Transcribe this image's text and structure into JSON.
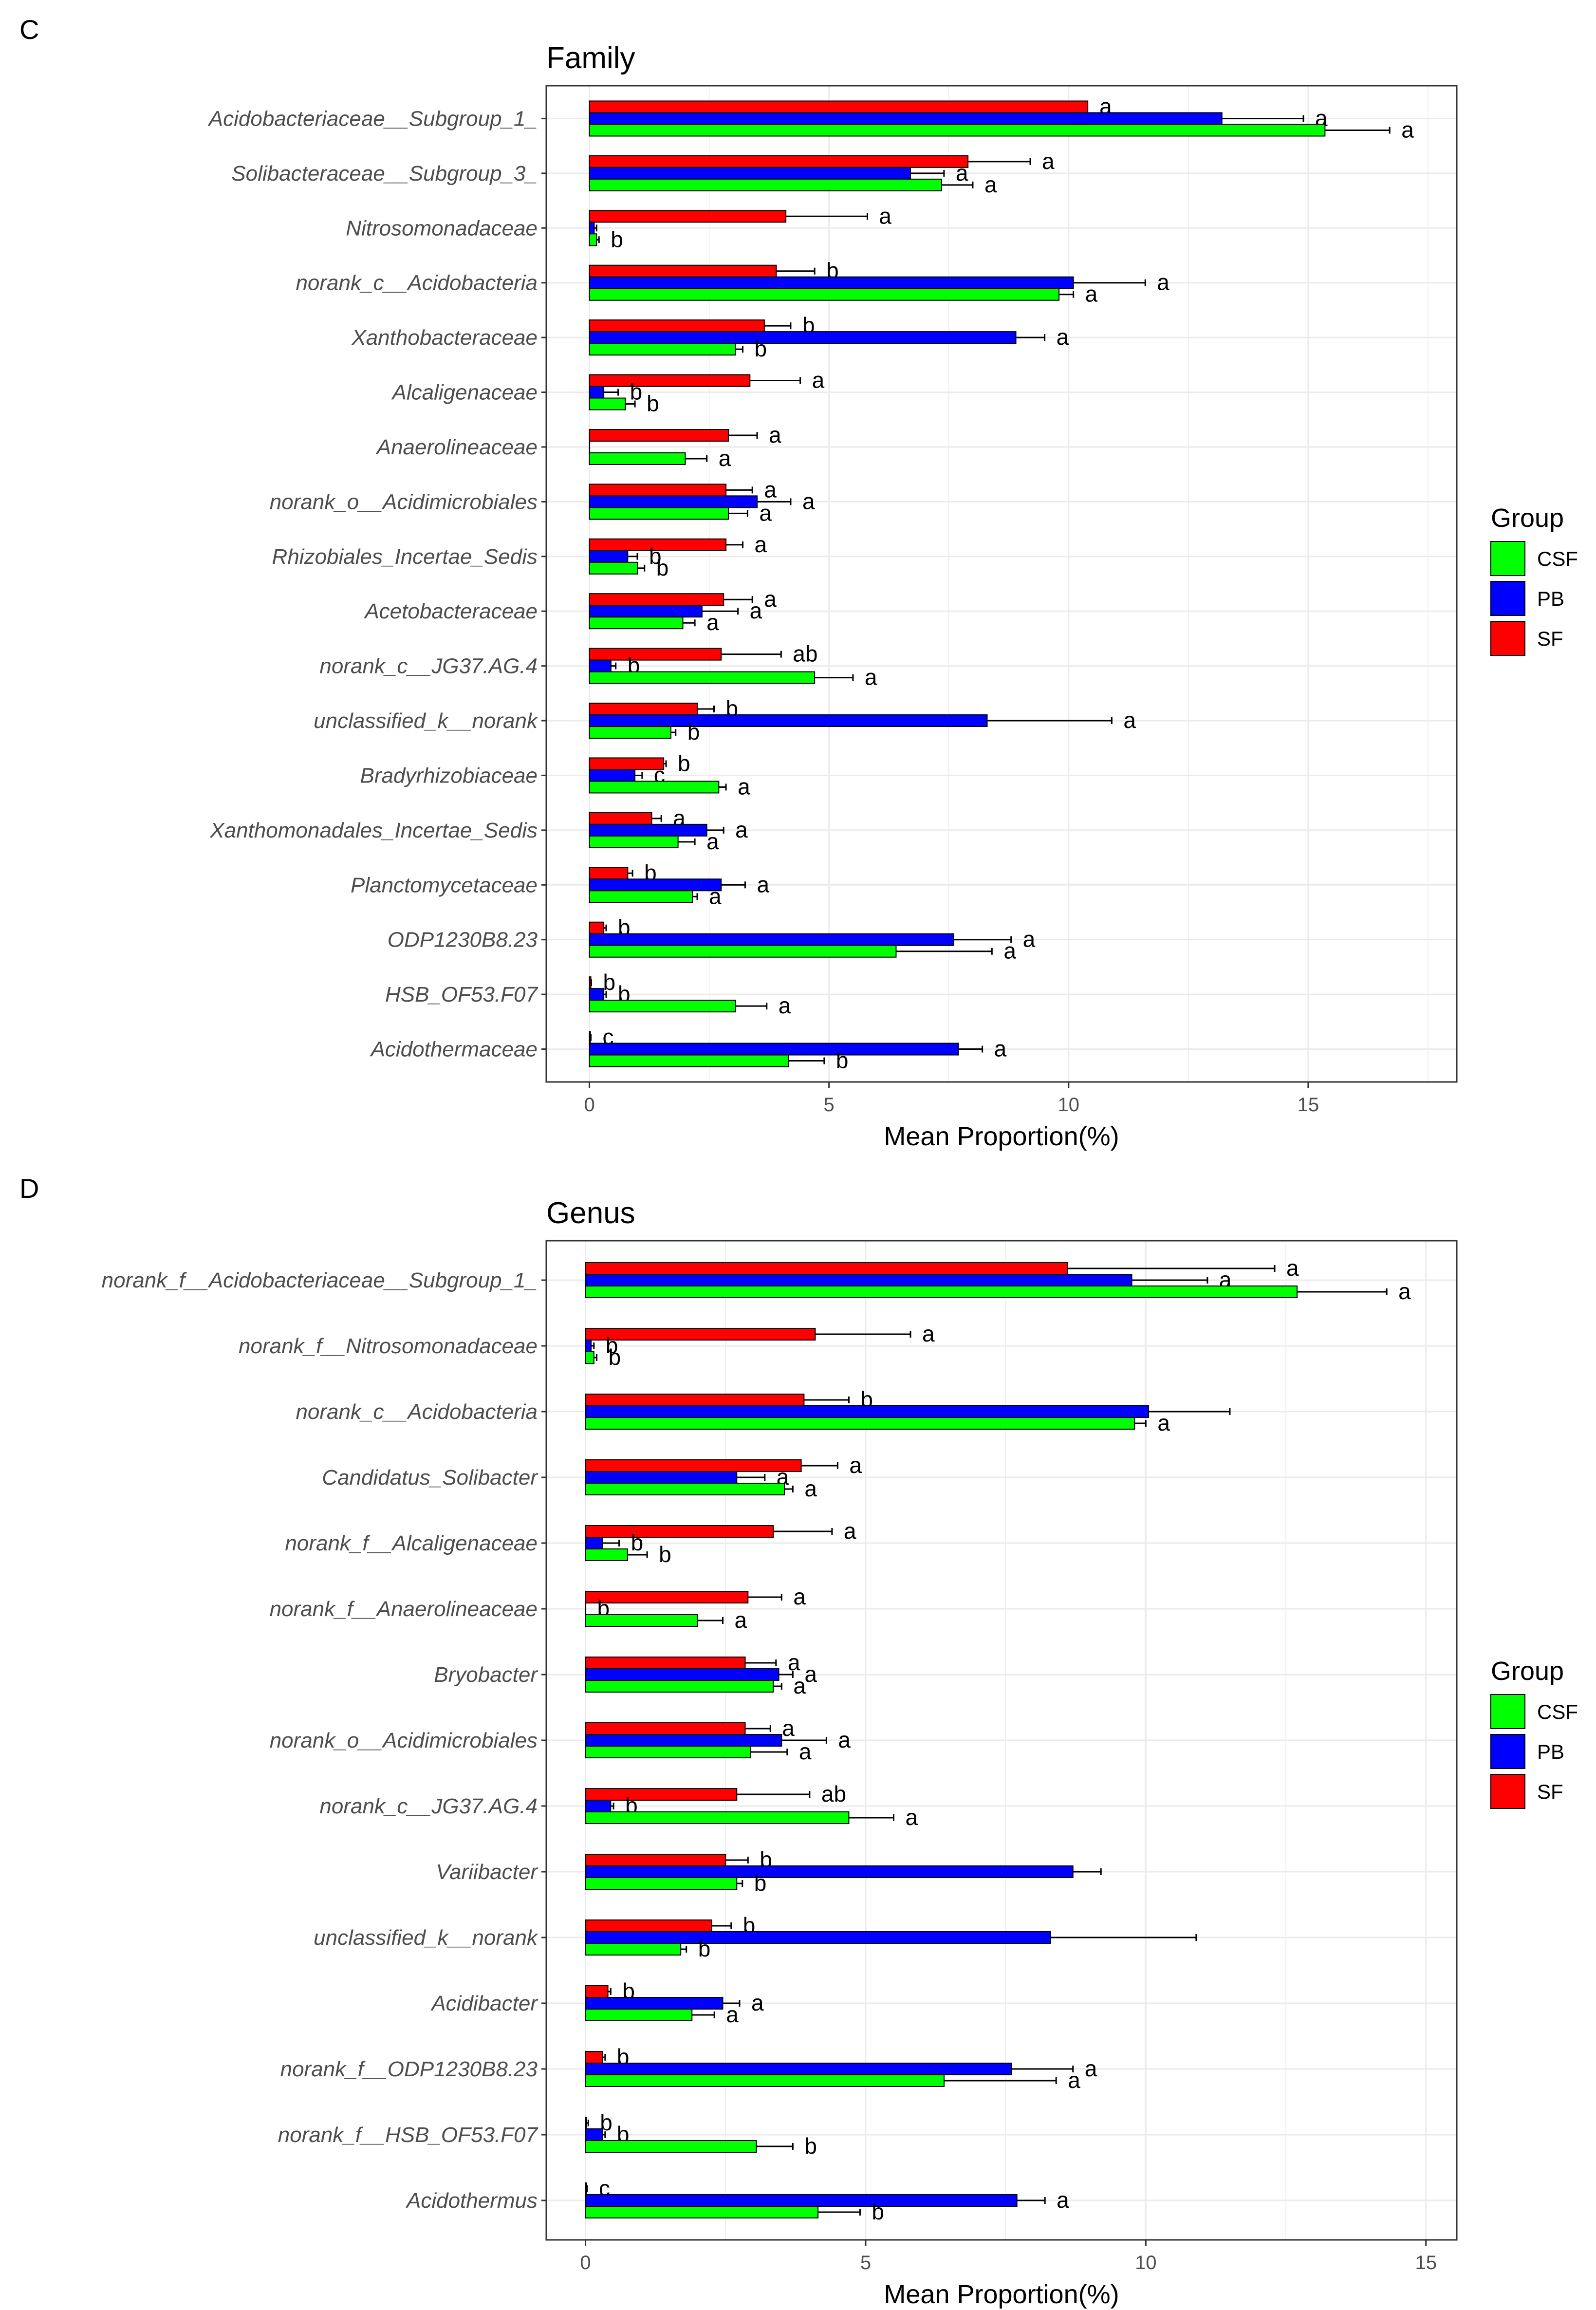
{
  "colors": {
    "CSF": "#00FF00",
    "PB": "#0000FF",
    "SF": "#FF0000"
  },
  "legend": {
    "title": "Group",
    "entries": [
      "CSF",
      "PB",
      "SF"
    ]
  },
  "chart_data": [
    {
      "type": "bar",
      "orientation": "horizontal",
      "panel_letter": "C",
      "title": "Family",
      "xlabel": "Mean Proportion(%)",
      "xlim": [
        -0.9,
        18.1
      ],
      "xticks": [
        0,
        5,
        10,
        15
      ],
      "grid": true,
      "legend_position": "right",
      "categories": [
        "Acidobacteriaceae__Subgroup_1_",
        "Solibacteraceae__Subgroup_3_",
        "Nitrosomonadaceae",
        "norank_c__Acidobacteria",
        "Xanthobacteraceae",
        "Alcaligenaceae",
        "Anaerolineaceae",
        "norank_o__Acidimicrobiales",
        "Rhizobiales_Incertae_Sedis",
        "Acetobacteraceae",
        "norank_c__JG37.AG.4",
        "unclassified_k__norank",
        "Bradyrhizobiaceae",
        "Xanthomonadales_Incertae_Sedis",
        "Planctomycetaceae",
        "ODP1230B8.23",
        "HSB_OF53.F07",
        "Acidothermaceae"
      ],
      "series": [
        {
          "name": "SF",
          "values": [
            10.4,
            7.9,
            4.1,
            3.9,
            3.65,
            3.35,
            2.9,
            2.85,
            2.85,
            2.8,
            2.75,
            2.25,
            1.55,
            1.3,
            0.8,
            0.3,
            0.03,
            0.02
          ],
          "errors": [
            4.2,
            9.2,
            5.8,
            4.7,
            4.2,
            4.4,
            3.5,
            3.4,
            3.2,
            3.4,
            4.0,
            2.6,
            1.6,
            1.5,
            0.9,
            0.35,
            0.04,
            0.03
          ],
          "labels": [
            "a",
            "a",
            "a",
            "b",
            "b",
            "a",
            "a",
            "a",
            "a",
            "a",
            "ab",
            "b",
            "b",
            "a",
            "b",
            "b",
            "b",
            "c"
          ]
        },
        {
          "name": "PB",
          "values": [
            13.2,
            6.7,
            0.1,
            10.1,
            8.9,
            0.3,
            0.0,
            3.5,
            0.8,
            2.35,
            0.45,
            8.3,
            0.95,
            2.45,
            2.75,
            7.6,
            0.3,
            7.7
          ],
          "errors": [
            14.9,
            7.4,
            0.15,
            11.6,
            9.5,
            0.6,
            0.0,
            4.2,
            1.0,
            3.1,
            0.55,
            10.9,
            1.1,
            2.8,
            3.25,
            8.8,
            0.35,
            8.2
          ],
          "labels": [
            "a",
            "a",
            "",
            "a",
            "a",
            "b",
            "",
            "a",
            "b",
            "a",
            "b",
            "a",
            "c",
            "a",
            "a",
            "a",
            "b",
            "a"
          ]
        },
        {
          "name": "CSF",
          "values": [
            15.35,
            7.35,
            0.15,
            9.8,
            3.05,
            0.75,
            2.0,
            2.9,
            1.0,
            1.95,
            4.7,
            1.7,
            2.7,
            1.85,
            2.15,
            6.4,
            3.05,
            4.15
          ],
          "errors": [
            16.7,
            8.0,
            0.2,
            10.1,
            3.2,
            0.95,
            2.45,
            3.3,
            1.15,
            2.2,
            5.5,
            1.8,
            2.85,
            2.2,
            2.25,
            8.4,
            3.7,
            4.9
          ],
          "labels": [
            "a",
            "a",
            "b",
            "a",
            "b",
            "b",
            "a",
            "a",
            "b",
            "a",
            "a",
            "b",
            "a",
            "a",
            "a",
            "a",
            "a",
            "b"
          ]
        }
      ]
    },
    {
      "type": "bar",
      "orientation": "horizontal",
      "panel_letter": "D",
      "title": "Genus",
      "xlabel": "Mean Proportion(%)",
      "xlim": [
        -0.7,
        15.55
      ],
      "xticks": [
        0,
        5,
        10,
        15
      ],
      "grid": true,
      "legend_position": "right",
      "categories": [
        "norank_f__Acidobacteriaceae__Subgroup_1_",
        "norank_f__Nitrosomonadaceae",
        "norank_c__Acidobacteria",
        "Candidatus_Solibacter",
        "norank_f__Alcaligenaceae",
        "norank_f__Anaerolineaceae",
        "Bryobacter",
        "norank_o__Acidimicrobiales",
        "norank_c__JG37.AG.4",
        "Variibacter",
        "unclassified_k__norank",
        "Acidibacter",
        "norank_f__ODP1230B8.23",
        "norank_f__HSB_OF53.F07",
        "Acidothermus"
      ],
      "series": [
        {
          "name": "SF",
          "values": [
            8.6,
            4.1,
            3.9,
            3.85,
            3.35,
            2.9,
            2.85,
            2.85,
            2.7,
            2.5,
            2.25,
            0.4,
            0.3,
            0.02,
            0.02
          ],
          "errors": [
            12.3,
            5.8,
            4.7,
            4.5,
            4.4,
            3.5,
            3.4,
            3.3,
            4.0,
            2.9,
            2.6,
            0.45,
            0.35,
            0.05,
            0.03
          ],
          "labels": [
            "a",
            "a",
            "b",
            "a",
            "a",
            "a",
            "a",
            "a",
            "ab",
            "b",
            "b",
            "b",
            "b",
            "b",
            "c"
          ]
        },
        {
          "name": "PB",
          "values": [
            9.75,
            0.1,
            10.05,
            2.7,
            0.3,
            0.0,
            3.45,
            3.5,
            0.45,
            8.7,
            8.3,
            2.45,
            7.6,
            0.3,
            7.7
          ],
          "errors": [
            11.1,
            0.15,
            11.5,
            3.2,
            0.6,
            0.0,
            3.7,
            4.3,
            0.5,
            9.2,
            10.9,
            2.75,
            8.7,
            0.35,
            8.2
          ],
          "labels": [
            "a",
            "b",
            "",
            "a",
            "b",
            "b",
            "a",
            "a",
            "b",
            "",
            "",
            "a",
            "a",
            "b",
            "a"
          ]
        },
        {
          "name": "CSF",
          "values": [
            12.7,
            0.15,
            9.8,
            3.55,
            0.75,
            2.0,
            3.35,
            2.95,
            4.7,
            2.7,
            1.7,
            1.9,
            6.4,
            3.05,
            4.15
          ],
          "errors": [
            14.3,
            0.2,
            10.0,
            3.7,
            1.1,
            2.45,
            3.5,
            3.6,
            5.5,
            2.8,
            1.8,
            2.3,
            8.4,
            3.7,
            4.9
          ],
          "labels": [
            "a",
            "b",
            "a",
            "a",
            "b",
            "a",
            "a",
            "a",
            "a",
            "b",
            "b",
            "a",
            "a",
            "b",
            "b"
          ]
        }
      ]
    }
  ]
}
